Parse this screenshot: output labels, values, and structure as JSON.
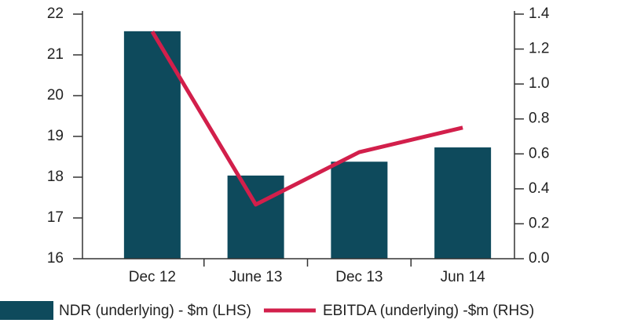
{
  "chart_data": {
    "type": "bar+line",
    "categories": [
      "Dec 12",
      "June 13",
      "Dec 13",
      "Jun 14"
    ],
    "series": [
      {
        "name": "NDR (underlying) - $m (LHS)",
        "color": "#0e4a5c",
        "type": "bar",
        "values": [
          21.58,
          18.04,
          18.38,
          18.73
        ]
      },
      {
        "name": "EBITDA (underlying) -$m (RHS)",
        "color": "#d21f4b",
        "type": "line",
        "axis": "y2",
        "values": [
          1.3,
          0.31,
          0.61,
          0.75
        ]
      }
    ],
    "ylim": [
      16,
      22
    ],
    "yticks": [
      16,
      17,
      18,
      19,
      20,
      21,
      22
    ],
    "y2lim": [
      0,
      1.4
    ],
    "y2ticks": [
      {
        "value": 0,
        "label": "0.0"
      },
      0.2,
      0.4,
      0.6,
      0.8,
      {
        "value": 1,
        "label": "1.0"
      },
      1.2,
      1.4
    ]
  }
}
